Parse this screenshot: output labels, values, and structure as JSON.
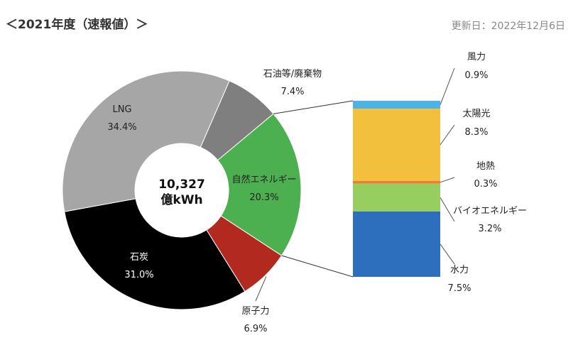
{
  "header": {
    "title": "＜2021年度（速報値）＞",
    "updated": "更新日：2022年12月6日"
  },
  "chart_data": [
    {
      "type": "pie",
      "center_label": [
        "10,327",
        "億kWh"
      ],
      "slices": [
        {
          "name": "石油等/廃棄物",
          "value_label": "7.4%",
          "value": 7.4,
          "color": "#7f7f7f"
        },
        {
          "name": "自然エネルギー",
          "value_label": "20.3%",
          "value": 20.3,
          "color": "#4caf50"
        },
        {
          "name": "原子力",
          "value_label": "6.9%",
          "value": 6.9,
          "color": "#b22a1f"
        },
        {
          "name": "石炭",
          "value_label": "31.0%",
          "value": 31.0,
          "color": "#000000"
        },
        {
          "name": "LNG",
          "value_label": "34.4%",
          "value": 34.4,
          "color": "#a6a6a6"
        }
      ]
    },
    {
      "type": "bar",
      "stacked": true,
      "segments": [
        {
          "name": "風力",
          "value_label": "0.9%",
          "value": 0.9,
          "color": "#4db3e6"
        },
        {
          "name": "太陽光",
          "value_label": "8.3%",
          "value": 8.3,
          "color": "#f2c03c"
        },
        {
          "name": "地熱",
          "value_label": "0.3%",
          "value": 0.3,
          "color": "#ed7d31"
        },
        {
          "name": "バイオエネルギー",
          "value_label": "3.2%",
          "value": 3.2,
          "color": "#96ce5f"
        },
        {
          "name": "水力",
          "value_label": "7.5%",
          "value": 7.5,
          "color": "#2e6fbd"
        }
      ]
    }
  ]
}
